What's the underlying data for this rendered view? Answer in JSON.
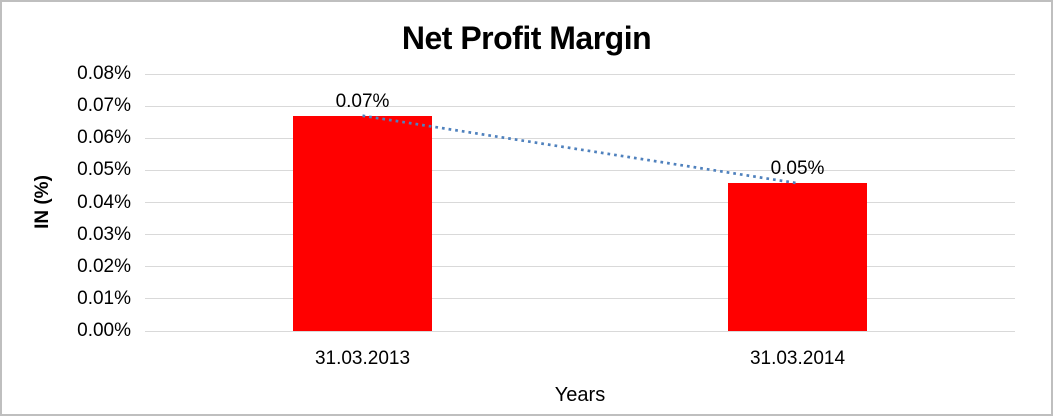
{
  "chart_data": {
    "type": "bar",
    "title": "Net Profit Margin",
    "xlabel": "Years",
    "ylabel": "IN (%)",
    "categories": [
      "31.03.2013",
      "31.03.2014"
    ],
    "values": [
      0.067,
      0.046
    ],
    "data_labels": [
      "0.07%",
      "0.05%"
    ],
    "series": [
      {
        "name": "Net Profit Margin",
        "values": [
          0.067,
          0.046
        ]
      }
    ],
    "ylim": [
      0,
      0.08
    ],
    "yticks": [
      {
        "value": 0.0,
        "label": "0.00%"
      },
      {
        "value": 0.01,
        "label": "0.01%"
      },
      {
        "value": 0.02,
        "label": "0.02%"
      },
      {
        "value": 0.03,
        "label": "0.03%"
      },
      {
        "value": 0.04,
        "label": "0.04%"
      },
      {
        "value": 0.05,
        "label": "0.05%"
      },
      {
        "value": 0.06,
        "label": "0.06%"
      },
      {
        "value": 0.07,
        "label": "0.07%"
      },
      {
        "value": 0.08,
        "label": "0.08%"
      }
    ],
    "grid": true,
    "legend": "none",
    "bar_color": "#ff0000",
    "gridline_color": "#d9d9d9",
    "text_color": "#000000",
    "trendline": {
      "type": "linear",
      "style": "dotted",
      "color": "#4f81bd"
    }
  }
}
